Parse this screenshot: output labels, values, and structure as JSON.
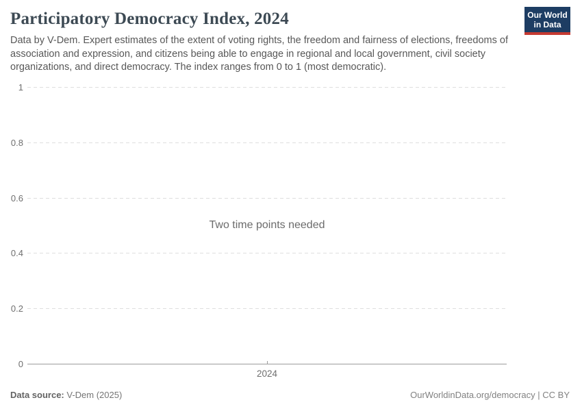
{
  "header": {
    "title": "Participatory Democracy Index, 2024",
    "subtitle": "Data by V-Dem. Expert estimates of the extent of voting rights, the freedom and fairness of elections, freedoms of association and expression, and citizens being able to engage in regional and local government, civil society organizations, and direct democracy. The index ranges from 0 to 1 (most democratic).",
    "logo": {
      "line1": "Our World",
      "line2": "in Data",
      "bg_color": "#1d3d63",
      "accent_color": "#c53a32"
    }
  },
  "chart_data": {
    "type": "line",
    "title": "Participatory Democracy Index, 2024",
    "empty_message": "Two time points needed",
    "series": [],
    "x": [],
    "xticks": [
      "2024"
    ],
    "yticks": [
      0,
      0.2,
      0.4,
      0.6,
      0.8,
      1
    ],
    "ylim": [
      0,
      1
    ],
    "xlabel": "",
    "ylabel": "",
    "grid": "horizontal-dashed",
    "gridline_color": "#dedede",
    "axis_color": "#9a9a9a"
  },
  "footer": {
    "source_label": "Data source:",
    "source_value": "V-Dem (2025)",
    "attribution": "OurWorldinData.org/democracy | CC BY"
  }
}
